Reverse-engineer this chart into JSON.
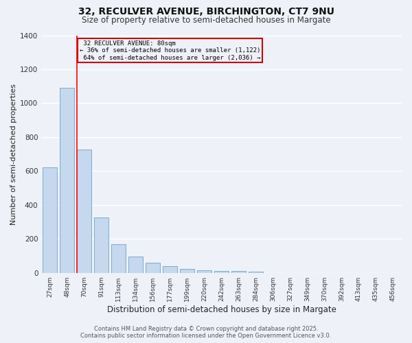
{
  "title": "32, RECULVER AVENUE, BIRCHINGTON, CT7 9NU",
  "subtitle": "Size of property relative to semi-detached houses in Margate",
  "xlabel": "Distribution of semi-detached houses by size in Margate",
  "ylabel": "Number of semi-detached properties",
  "bar_color": "#c5d8ee",
  "bar_edge_color": "#7eaacc",
  "categories": [
    "27sqm",
    "48sqm",
    "70sqm",
    "91sqm",
    "113sqm",
    "134sqm",
    "156sqm",
    "177sqm",
    "199sqm",
    "220sqm",
    "242sqm",
    "263sqm",
    "284sqm",
    "306sqm",
    "327sqm",
    "349sqm",
    "370sqm",
    "392sqm",
    "413sqm",
    "435sqm",
    "456sqm"
  ],
  "values": [
    620,
    1090,
    725,
    325,
    170,
    95,
    60,
    40,
    22,
    14,
    10,
    10,
    8,
    0,
    0,
    0,
    0,
    0,
    0,
    0,
    0
  ],
  "ylim": [
    0,
    1400
  ],
  "yticks": [
    0,
    200,
    400,
    600,
    800,
    1000,
    1200,
    1400
  ],
  "property_label": "32 RECULVER AVENUE: 80sqm",
  "pct_smaller": 36,
  "pct_larger": 64,
  "n_smaller": 1122,
  "n_larger": 2036,
  "red_line_bar_index": 2,
  "annotation_box_color": "#cc0000",
  "footer_line1": "Contains HM Land Registry data © Crown copyright and database right 2025.",
  "footer_line2": "Contains public sector information licensed under the Open Government Licence v3.0.",
  "background_color": "#eef2f8",
  "grid_color": "#ffffff",
  "title_fontsize": 10,
  "subtitle_fontsize": 8.5,
  "axis_label_fontsize": 8,
  "tick_fontsize": 6.5,
  "footer_fontsize": 6
}
